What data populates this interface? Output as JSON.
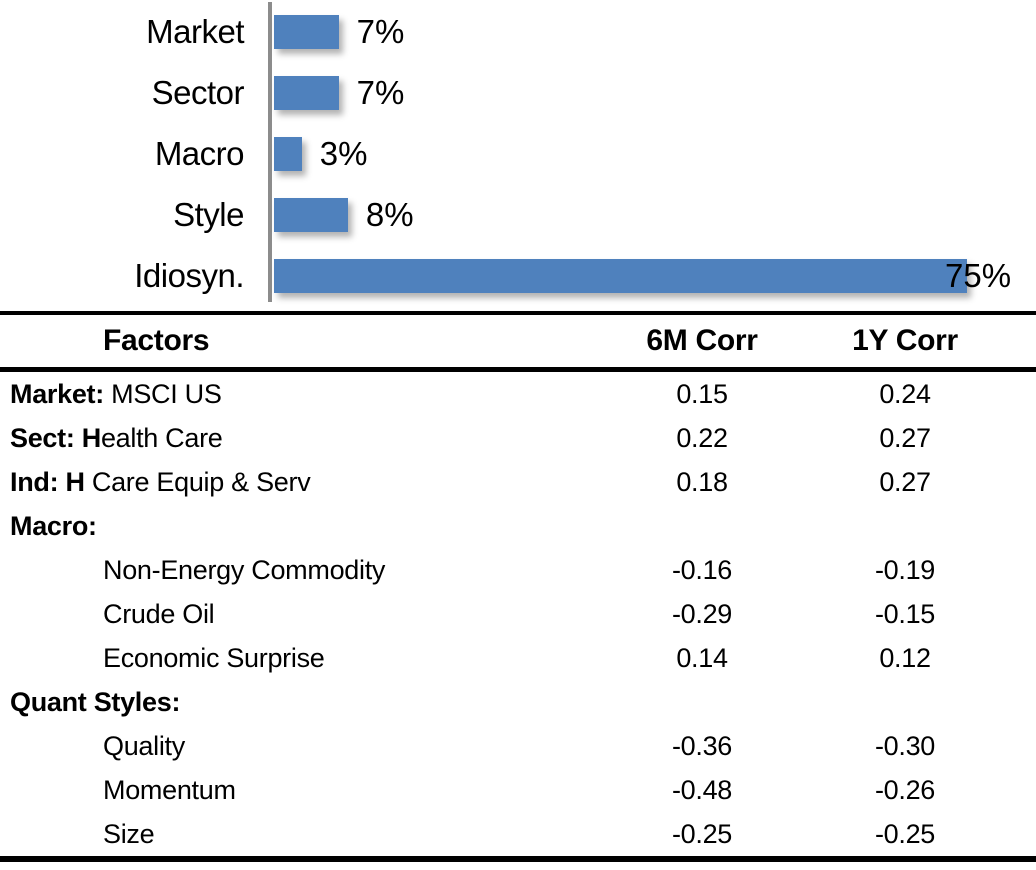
{
  "chart_data": {
    "type": "bar",
    "orientation": "horizontal",
    "title": "",
    "xlabel": "",
    "ylabel": "",
    "categories": [
      "Market",
      "Sector",
      "Macro",
      "Style",
      "Idiosyn."
    ],
    "values": [
      7,
      7,
      3,
      8,
      75
    ],
    "value_labels": [
      "7%",
      "7%",
      "3%",
      "8%",
      "75%"
    ],
    "unit": "%",
    "xlim": [
      0,
      80
    ],
    "grid": false,
    "legend": false,
    "bar_color": "#4F81BD",
    "axis_line_color": "#8C8C8C",
    "data_label_positions": [
      "outside-end",
      "outside-end",
      "outside-end",
      "outside-end",
      "inside-end"
    ]
  },
  "table": {
    "columns": [
      "Factors",
      "6M Corr",
      "1Y Corr"
    ],
    "rows": [
      {
        "label_bold": "Market:",
        "label_rest": " MSCI US",
        "indent": false,
        "corr_6m": "0.15",
        "corr_1y": "0.24"
      },
      {
        "label_bold": "Sect: H",
        "label_rest": "ealth Care",
        "indent": false,
        "corr_6m": "0.22",
        "corr_1y": "0.27"
      },
      {
        "label_bold": "Ind: H",
        "label_rest": " Care Equip & Serv",
        "indent": false,
        "corr_6m": "0.18",
        "corr_1y": "0.27"
      },
      {
        "label_bold": "Macro:",
        "label_rest": "",
        "indent": false,
        "corr_6m": "",
        "corr_1y": ""
      },
      {
        "label_bold": "",
        "label_rest": "Non-Energy Commodity",
        "indent": true,
        "corr_6m": "-0.16",
        "corr_1y": "-0.19"
      },
      {
        "label_bold": "",
        "label_rest": "Crude Oil",
        "indent": true,
        "corr_6m": "-0.29",
        "corr_1y": "-0.15"
      },
      {
        "label_bold": "",
        "label_rest": "Economic Surprise",
        "indent": true,
        "corr_6m": "0.14",
        "corr_1y": "0.12"
      },
      {
        "label_bold": "Quant Styles:",
        "label_rest": "",
        "indent": false,
        "corr_6m": "",
        "corr_1y": ""
      },
      {
        "label_bold": "",
        "label_rest": "Quality",
        "indent": true,
        "corr_6m": "-0.36",
        "corr_1y": "-0.30"
      },
      {
        "label_bold": "",
        "label_rest": "Momentum",
        "indent": true,
        "corr_6m": "-0.48",
        "corr_1y": "-0.26"
      },
      {
        "label_bold": "",
        "label_rest": "Size",
        "indent": true,
        "corr_6m": "-0.25",
        "corr_1y": "-0.25"
      }
    ]
  }
}
